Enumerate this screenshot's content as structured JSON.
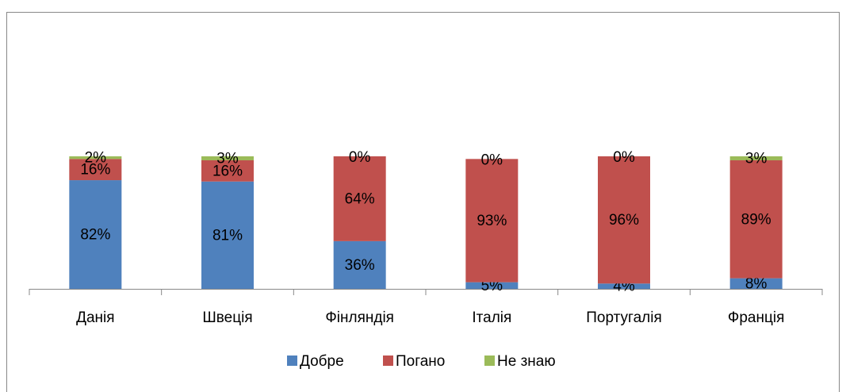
{
  "chart_data": {
    "type": "stacked_bar",
    "categories": [
      "Данія",
      "Швеція",
      "Фінляндія",
      "Італія",
      "Португалія",
      "Франція"
    ],
    "series": [
      {
        "name": "Добре",
        "color": "#4f81bd",
        "values": [
          82,
          81,
          36,
          5,
          4,
          8
        ],
        "value_labels": [
          "82%",
          "81%",
          "36%",
          "5%",
          "4%",
          "8%"
        ]
      },
      {
        "name": "Погано",
        "color": "#c0504d",
        "values": [
          16,
          16,
          64,
          93,
          96,
          89
        ],
        "value_labels": [
          "16%",
          "16%",
          "64%",
          "93%",
          "96%",
          "89%"
        ]
      },
      {
        "name": "Не знаю",
        "color": "#9bbb59",
        "values": [
          2,
          3,
          0,
          0,
          0,
          3
        ],
        "value_labels": [
          "2%",
          "3%",
          "0%",
          "0%",
          "0%",
          "3%"
        ]
      }
    ],
    "legend": "bottom"
  }
}
